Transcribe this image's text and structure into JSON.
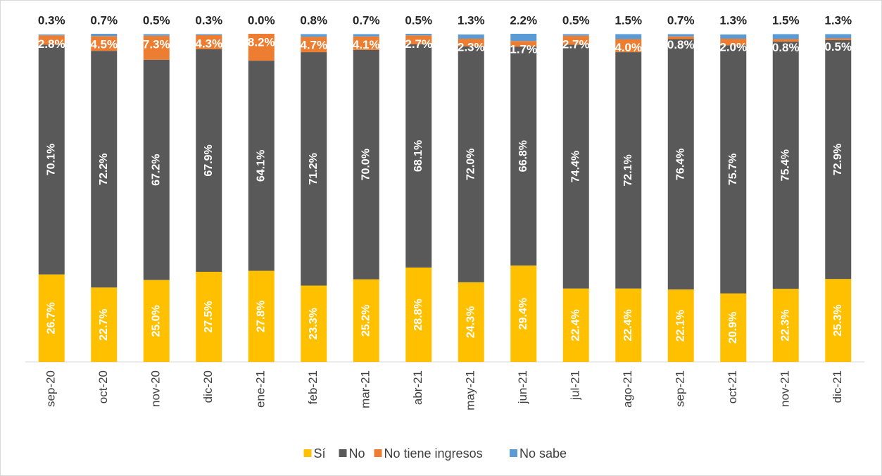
{
  "chart_data": {
    "type": "stacked_bar",
    "categories": [
      "sep-20",
      "oct-20",
      "nov-20",
      "dic-20",
      "ene-21",
      "feb-21",
      "mar-21",
      "abr-21",
      "may-21",
      "jun-21",
      "jul-21",
      "ago-21",
      "sep-21",
      "oct-21",
      "nov-21",
      "dic-21"
    ],
    "series": [
      {
        "name": "Sí",
        "color": "#FFC000",
        "values": [
          26.7,
          22.7,
          25.0,
          27.5,
          27.8,
          23.3,
          25.2,
          28.8,
          24.3,
          29.4,
          22.4,
          22.4,
          22.1,
          20.9,
          22.3,
          25.3
        ],
        "value_labels": [
          "26.7%",
          "22.7%",
          "25.0%",
          "27.5%",
          "27.8%",
          "23.3%",
          "25.2%",
          "28.8%",
          "24.3%",
          "29.4%",
          "22.4%",
          "22.4%",
          "22.1%",
          "20.9%",
          "22.3%",
          "25.3%"
        ]
      },
      {
        "name": "No",
        "color": "#595959",
        "values": [
          70.1,
          72.2,
          67.2,
          67.9,
          64.1,
          71.2,
          70.0,
          68.1,
          72.0,
          66.8,
          74.4,
          72.1,
          76.4,
          75.7,
          75.4,
          72.9
        ],
        "value_labels": [
          "70.1%",
          "72.2%",
          "67.2%",
          "67.9%",
          "64.1%",
          "71.2%",
          "70.0%",
          "68.1%",
          "72.0%",
          "66.8%",
          "74.4%",
          "72.1%",
          "76.4%",
          "75.7%",
          "75.4%",
          "72.9%"
        ]
      },
      {
        "name": "No tiene ingresos",
        "color": "#ED7D31",
        "values": [
          2.8,
          4.5,
          7.3,
          4.3,
          8.2,
          4.7,
          4.1,
          2.7,
          2.3,
          1.7,
          2.7,
          4.0,
          0.8,
          2.0,
          0.8,
          0.5
        ],
        "value_labels": [
          "2.8%",
          "4.5%",
          "7.3%",
          "4.3%",
          "8.2%",
          "4.7%",
          "4.1%",
          "2.7%",
          "2.3%",
          "1.7%",
          "2.7%",
          "4.0%",
          "0.8%",
          "2.0%",
          "0.8%",
          "0.5%"
        ]
      },
      {
        "name": "No sabe",
        "color": "#5B9BD5",
        "values": [
          0.3,
          0.7,
          0.5,
          0.3,
          0.0,
          0.8,
          0.7,
          0.5,
          1.3,
          2.2,
          0.5,
          1.5,
          0.7,
          1.3,
          1.5,
          1.3
        ],
        "value_labels": [
          "0.3%",
          "0.7%",
          "0.5%",
          "0.3%",
          "0.0%",
          "0.8%",
          "0.7%",
          "0.5%",
          "1.3%",
          "2.2%",
          "0.5%",
          "1.5%",
          "0.7%",
          "1.3%",
          "1.5%",
          "1.3%"
        ]
      }
    ]
  }
}
